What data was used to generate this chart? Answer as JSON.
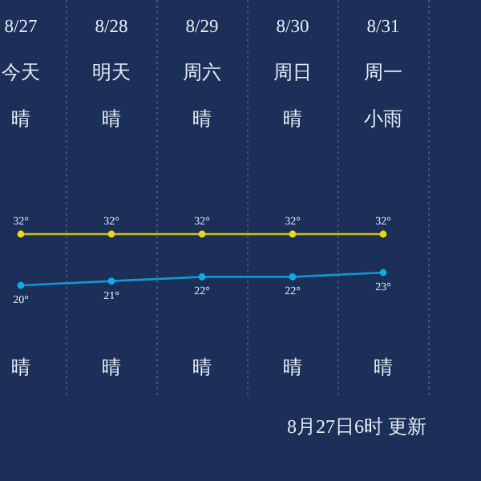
{
  "chart_data": {
    "type": "line",
    "categories": [
      "8/27",
      "8/28",
      "8/29",
      "8/30",
      "8/31"
    ],
    "series": [
      {
        "color": "#e8dc00",
        "values": [
          32,
          32,
          32,
          32,
          32
        ],
        "value_labels": [
          "32°",
          "32°",
          "32°",
          "32°",
          "32°"
        ]
      },
      {
        "color": "#14a8e8",
        "values": [
          20,
          21,
          22,
          22,
          23
        ],
        "value_labels": [
          "20°",
          "21°",
          "22°",
          "22°",
          "23°"
        ]
      }
    ],
    "marker": "circle",
    "grid": "x",
    "tick_labels": "x",
    "annotations": [
      "今天",
      "明天",
      "周六",
      "周日",
      "周一",
      "晴",
      "晴",
      "晴",
      "晴",
      "小雨",
      "晴",
      "晴",
      "晴",
      "晴",
      "晴",
      "8月27日6时 更新"
    ]
  }
}
